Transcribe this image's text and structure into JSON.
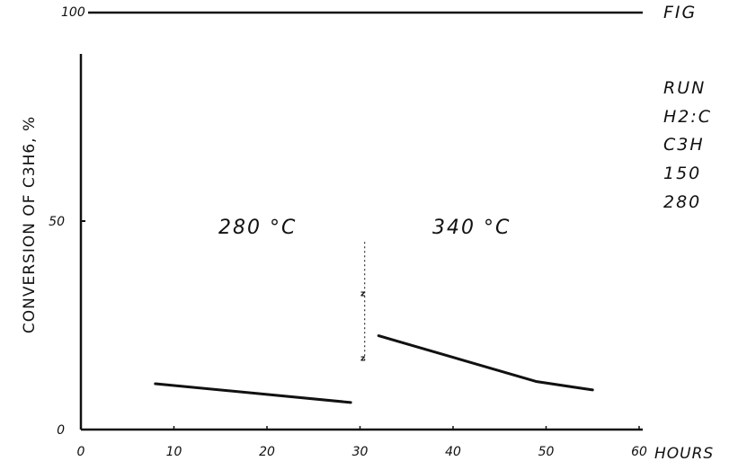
{
  "chart_data": {
    "type": "line",
    "title": "",
    "xlabel": "HOURS",
    "ylabel": "CONVERSION OF C3H6, %",
    "xlim": [
      0,
      65
    ],
    "ylim": [
      0,
      100
    ],
    "x_ticks": [
      "0",
      "10",
      "20",
      "30",
      "40",
      "50",
      "60"
    ],
    "x_tick_values": [
      0,
      10,
      20,
      30,
      40,
      50,
      60
    ],
    "y_ticks": [
      "0",
      "50",
      "100"
    ],
    "y_tick_values": [
      0,
      50,
      100
    ],
    "grid": false,
    "reference_line": {
      "y": 100,
      "label": "100"
    },
    "series": [
      {
        "x": [
          8,
          29
        ],
        "y": [
          11,
          6.5
        ]
      },
      {
        "x": [
          32,
          49,
          55
        ],
        "y": [
          22.5,
          11.5,
          9.5
        ]
      }
    ],
    "region_labels": [
      {
        "text": "280 °C",
        "x": 19,
        "y": 47
      },
      {
        "text": "340 °C",
        "x": 42,
        "y": 47
      }
    ],
    "divider": {
      "x": 30.5,
      "y_from": 16,
      "y_to": 45
    },
    "marks": [
      {
        "text": "z",
        "x": 30.5,
        "y": 32
      },
      {
        "text": "z",
        "x": 30.5,
        "y": 16.5
      }
    ],
    "side_text": [
      "FIG",
      "RUN",
      "H2:C",
      "C3H",
      "150",
      "280"
    ]
  }
}
